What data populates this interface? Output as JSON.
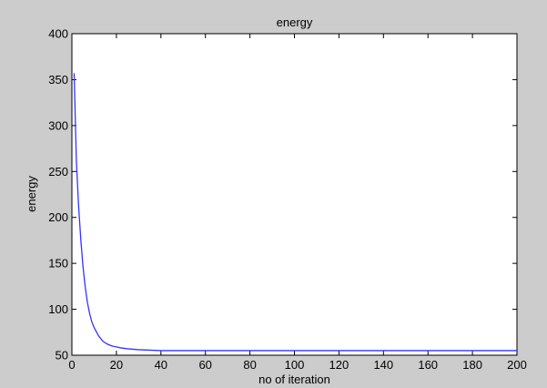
{
  "chart_data": {
    "type": "line",
    "title": "energy",
    "xlabel": "no of iteration",
    "ylabel": "energy",
    "xlim": [
      0,
      200
    ],
    "ylim": [
      50,
      400
    ],
    "xticks": [
      0,
      20,
      40,
      60,
      80,
      100,
      120,
      140,
      160,
      180,
      200
    ],
    "yticks": [
      50,
      100,
      150,
      200,
      250,
      300,
      350,
      400
    ],
    "grid": false,
    "legend": "none",
    "series": [
      {
        "color": "#3333ff",
        "x": [
          1,
          2,
          3,
          4,
          5,
          6,
          7,
          8,
          9,
          10,
          12,
          14,
          16,
          18,
          20,
          22,
          25,
          30,
          35,
          40,
          50,
          60,
          80,
          100,
          120,
          140,
          160,
          180,
          200
        ],
        "y": [
          357,
          262,
          213,
          176,
          146,
          124,
          107,
          95,
          86,
          80,
          71,
          65,
          62,
          60,
          59,
          58,
          57,
          56,
          55.5,
          55,
          55,
          55,
          55,
          55,
          55,
          55,
          55,
          55,
          55
        ]
      }
    ]
  },
  "colors": {
    "figure_background": "#cccccc",
    "axes_background": "#ffffff",
    "axis_color": "#000000"
  }
}
